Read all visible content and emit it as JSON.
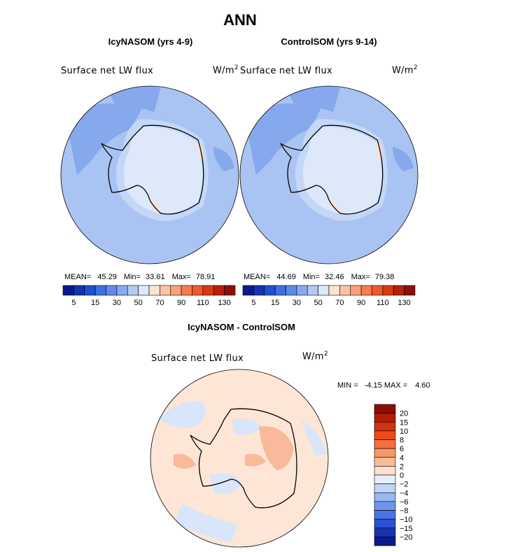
{
  "chart_data": {
    "type": "heatmap",
    "title": "ANN",
    "panels": [
      {
        "subtitle": "IcyNASOM (yrs 4-9)",
        "field_label": "Surface net LW flux",
        "units": "W/m",
        "units_sup": "2",
        "stats": {
          "mean_label": "MEAN=",
          "mean": "45.29",
          "min_label": "Min=",
          "min": "33.61",
          "max_label": "Max=",
          "max": "78.91"
        },
        "colorbar_ticks": [
          "5",
          "15",
          "30",
          "50",
          "70",
          "90",
          "110",
          "130"
        ]
      },
      {
        "subtitle": "ControlSOM (yrs 9-14)",
        "field_label": "Surface net LW flux",
        "units": "W/m",
        "units_sup": "2",
        "stats": {
          "mean_label": "MEAN=",
          "mean": "44.69",
          "min_label": "Min=",
          "min": "32.46",
          "max_label": "Max=",
          "max": "79.38"
        },
        "colorbar_ticks": [
          "5",
          "15",
          "30",
          "50",
          "70",
          "90",
          "110",
          "130"
        ]
      },
      {
        "subtitle": "IcyNASOM - ControlSOM",
        "field_label": "Surface net LW flux",
        "units": "W/m",
        "units_sup": "2",
        "stats": {
          "min_label": "MIN =",
          "min": "-4.15",
          "max_label": "MAX =",
          "max": "4.60"
        },
        "colorbar_ticks": [
          "20",
          "15",
          "10",
          "8",
          "6",
          "4",
          "2",
          "0",
          "−2",
          "−4",
          "−6",
          "−8",
          "−10",
          "−15",
          "−20"
        ]
      }
    ],
    "abs_colors": [
      "#0a1a8c",
      "#1533b0",
      "#2050d0",
      "#3d6fe0",
      "#5f8ae8",
      "#89a8ef",
      "#b3c9f4",
      "#dde8fb",
      "#fde3d3",
      "#fcc4a6",
      "#f9a07a",
      "#f77b50",
      "#ef5a2a",
      "#d93a12",
      "#b8200a",
      "#8c1005"
    ],
    "diff_colors": [
      "#8c0c05",
      "#b31c08",
      "#d3320e",
      "#ec4a19",
      "#f4703d",
      "#f79668",
      "#f9bb98",
      "#fce0cc",
      "#e5eefc",
      "#c2d5f7",
      "#9ab7f2",
      "#6f94ec",
      "#4a73e4",
      "#2a52d2",
      "#1734b0",
      "#0a1a8a"
    ],
    "map_colors": {
      "ocean_main": "#a9c4f3",
      "ocean_dark": "#86a8ec",
      "coastal": "#c5d7f7",
      "ice_edge": "#dde8fb",
      "warm": "#fbe0cf",
      "diff_main": "#fde6d6",
      "diff_warm": "#f9b99a",
      "diff_cool": "#d8e5fb"
    }
  }
}
